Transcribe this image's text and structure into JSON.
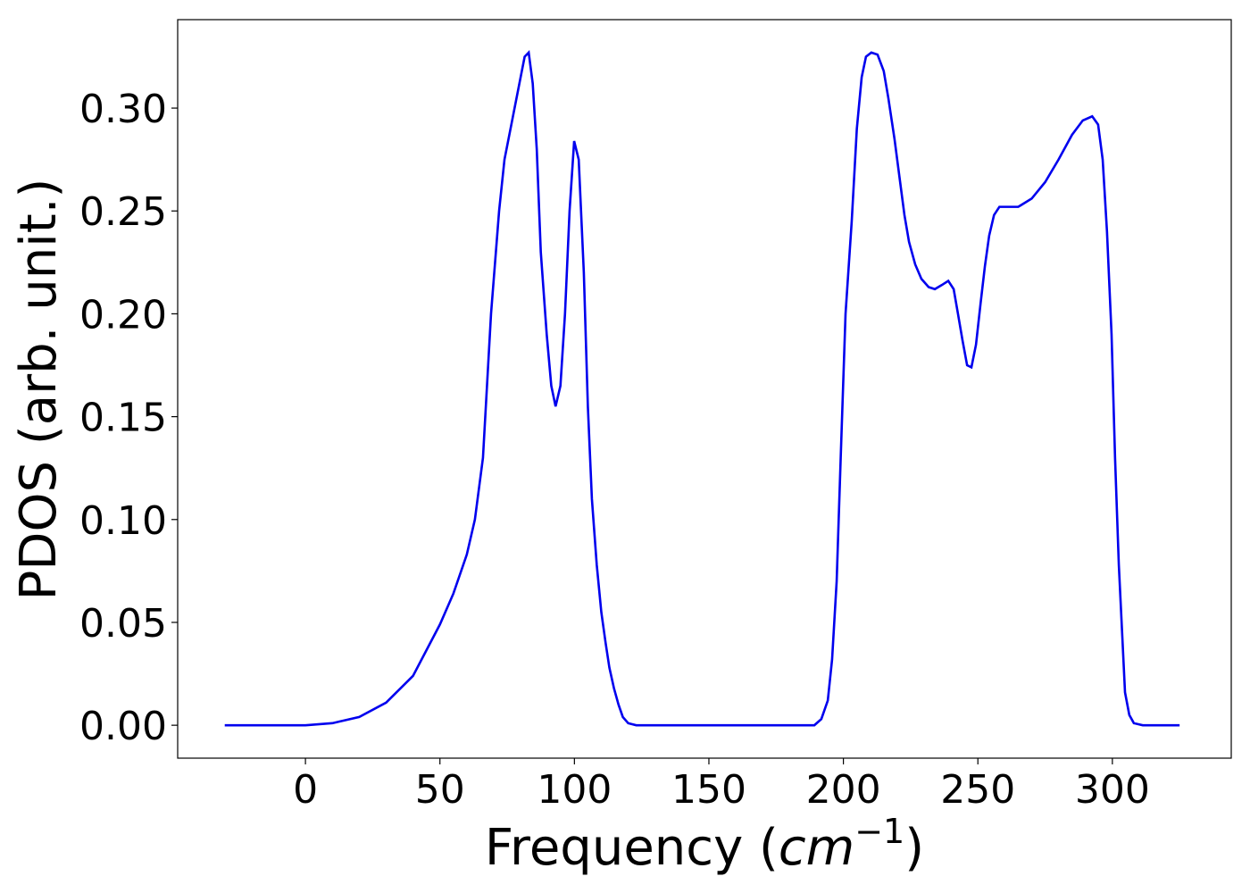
{
  "chart_data": {
    "type": "line",
    "xlabel": [
      "Frequency (",
      "cm",
      "−1",
      ")"
    ],
    "ylabel": "PDOS (arb. unit.)",
    "xlim": [
      -47.5,
      344.2
    ],
    "ylim": [
      -0.016,
      0.343
    ],
    "xticks": [
      0,
      50,
      100,
      150,
      200,
      250,
      300
    ],
    "yticks": [
      {
        "value": 0,
        "label": "0.00"
      },
      {
        "value": 0.05,
        "label": "0.05"
      },
      {
        "value": 0.1,
        "label": "0.10"
      },
      {
        "value": 0.15,
        "label": "0.15"
      },
      {
        "value": 0.2,
        "label": "0.20"
      },
      {
        "value": 0.25,
        "label": "0.25"
      },
      {
        "value": 0.3,
        "label": "0.30"
      }
    ],
    "grid": false,
    "series": [
      {
        "color": "#0000ee",
        "x": [
          -30,
          -20,
          -10,
          0,
          10,
          20,
          30,
          40,
          50,
          55,
          60,
          63,
          66,
          69,
          72,
          74,
          77,
          80,
          81.5,
          83,
          84.5,
          86,
          87.5,
          89.7,
          91.4,
          93,
          94.8,
          96.5,
          98.2,
          99.9,
          101.6,
          103.5,
          105,
          106.5,
          108.3,
          110,
          111.6,
          113,
          114.7,
          116.4,
          118,
          120,
          123,
          150,
          189.2,
          191.8,
          194.2,
          195.8,
          197.5,
          199,
          200.8,
          203.1,
          205,
          206.8,
          208.4,
          210.4,
          212.7,
          215,
          216.7,
          219,
          221,
          222.7,
          224.4,
          226.7,
          229,
          231.7,
          234,
          236.6,
          239,
          241,
          242.6,
          244.3,
          246,
          247.6,
          249.3,
          251,
          252.6,
          254.2,
          256,
          258,
          260.5,
          265,
          270,
          275,
          280,
          285,
          289,
          292.5,
          294.7,
          296.4,
          298,
          299.7,
          301,
          302.4,
          303.7,
          304.7,
          306.3,
          308,
          311.3,
          325
        ],
        "values": [
          0,
          0,
          0,
          0,
          0.001,
          0.004,
          0.011,
          0.024,
          0.049,
          0.064,
          0.083,
          0.1,
          0.13,
          0.2,
          0.25,
          0.275,
          0.295,
          0.315,
          0.325,
          0.327,
          0.312,
          0.28,
          0.23,
          0.19,
          0.165,
          0.155,
          0.165,
          0.2,
          0.25,
          0.284,
          0.275,
          0.22,
          0.155,
          0.11,
          0.078,
          0.055,
          0.04,
          0.028,
          0.018,
          0.01,
          0.004,
          0.001,
          0,
          0,
          0,
          0.003,
          0.012,
          0.032,
          0.07,
          0.13,
          0.2,
          0.245,
          0.29,
          0.315,
          0.325,
          0.327,
          0.326,
          0.318,
          0.305,
          0.285,
          0.265,
          0.248,
          0.235,
          0.224,
          0.217,
          0.213,
          0.212,
          0.214,
          0.216,
          0.212,
          0.2,
          0.187,
          0.175,
          0.174,
          0.185,
          0.205,
          0.223,
          0.238,
          0.248,
          0.252,
          0.252,
          0.252,
          0.256,
          0.264,
          0.275,
          0.287,
          0.294,
          0.296,
          0.292,
          0.275,
          0.24,
          0.19,
          0.13,
          0.078,
          0.043,
          0.016,
          0.005,
          0.001,
          0,
          0
        ]
      }
    ]
  }
}
